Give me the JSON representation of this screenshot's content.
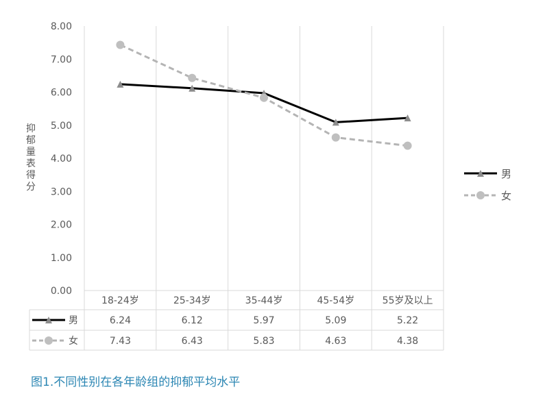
{
  "chart_data": {
    "type": "line",
    "title": "",
    "ylabel": "抑郁量表得分",
    "xlabel": "",
    "ylim": [
      0,
      8
    ],
    "yticks": [
      "0.00",
      "1.00",
      "2.00",
      "3.00",
      "4.00",
      "5.00",
      "6.00",
      "7.00",
      "8.00"
    ],
    "categories": [
      "18-24岁",
      "25-34岁",
      "35-44岁",
      "45-54岁",
      "55岁及以上"
    ],
    "grid": "vertical",
    "legend": "right",
    "data_table": true,
    "series": [
      {
        "name": "男",
        "values": [
          6.24,
          6.12,
          5.97,
          5.09,
          5.22
        ],
        "labels": [
          "6.24",
          "6.12",
          "5.97",
          "5.09",
          "5.22"
        ],
        "color": "#000000",
        "marker": "triangle",
        "marker_color": "#8c8c8c",
        "dash": "solid"
      },
      {
        "name": "女",
        "values": [
          7.43,
          6.43,
          5.83,
          4.63,
          4.38
        ],
        "labels": [
          "7.43",
          "6.43",
          "5.83",
          "4.63",
          "4.38"
        ],
        "color": "#b4b4b4",
        "marker": "circle",
        "marker_color": "#bfbfbf",
        "dash": "dashed"
      }
    ]
  },
  "caption": "图1.不同性别在各年龄组的抑郁平均水平"
}
